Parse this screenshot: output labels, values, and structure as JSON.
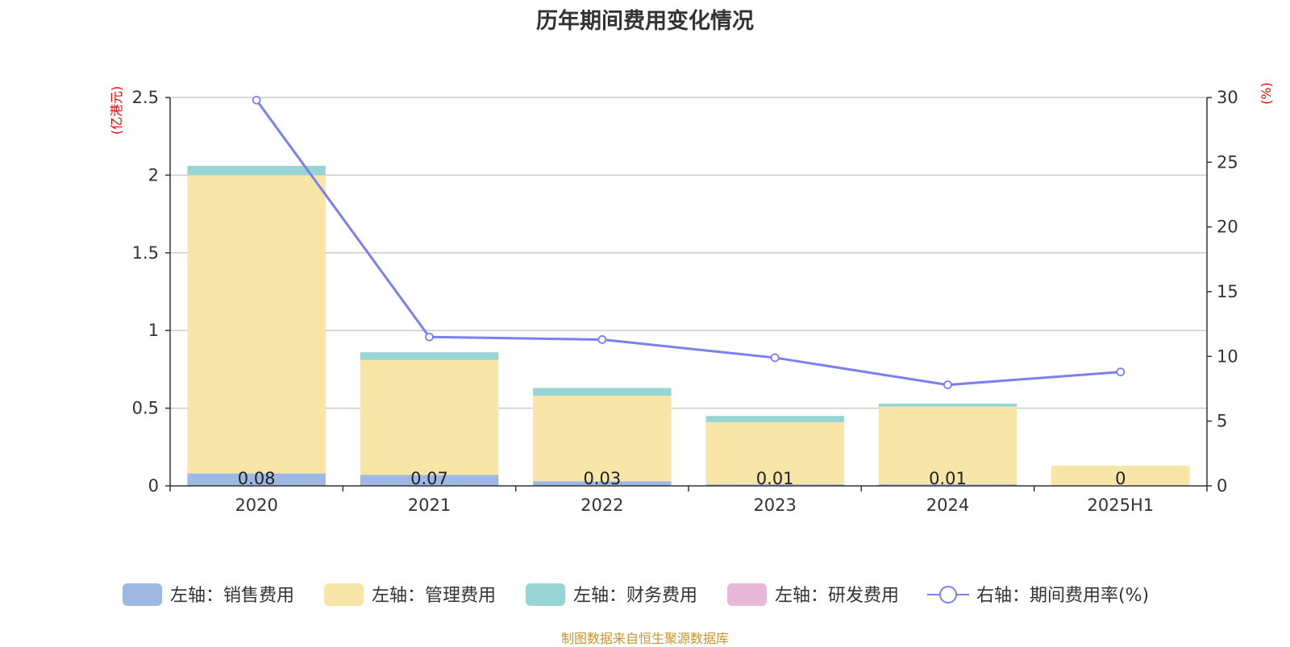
{
  "title": "历年期间费用变化情况",
  "source_note": "制图数据来自恒生聚源数据库",
  "chart_data": {
    "type": "bar",
    "stacked": true,
    "categories": [
      "2020",
      "2021",
      "2022",
      "2023",
      "2024",
      "2025H1"
    ],
    "left_axis": {
      "unit": "(亿港元)",
      "ylim": [
        0,
        2.5
      ],
      "ticks": [
        "0",
        "0.5",
        "1",
        "1.5",
        "2",
        "2.5"
      ]
    },
    "right_axis": {
      "unit": "(%)",
      "ylim": [
        0,
        30
      ],
      "ticks": [
        "0",
        "5",
        "10",
        "15",
        "20",
        "25",
        "30"
      ]
    },
    "grid": true,
    "legend_position": "bottom",
    "series": [
      {
        "name": "左轴：销售费用",
        "type": "bar",
        "axis": "left",
        "color": "#9db8e3",
        "values": [
          0.08,
          0.07,
          0.03,
          0.01,
          0.01,
          0
        ],
        "labels": [
          "0.08",
          "0.07",
          "0.03",
          "0.01",
          "0.01",
          "0"
        ]
      },
      {
        "name": "左轴：管理费用",
        "type": "bar",
        "axis": "left",
        "color": "#f7e6a8",
        "values": [
          1.92,
          0.74,
          0.55,
          0.4,
          0.5,
          0.13
        ]
      },
      {
        "name": "左轴：财务费用",
        "type": "bar",
        "axis": "left",
        "color": "#98d4d4",
        "values": [
          0.06,
          0.05,
          0.05,
          0.04,
          0.02,
          0
        ]
      },
      {
        "name": "左轴：研发费用",
        "type": "bar",
        "axis": "left",
        "color": "#e8b8d8",
        "values": [
          0,
          0,
          0,
          0,
          0,
          0
        ]
      },
      {
        "name": "右轴：期间费用率(%)",
        "type": "line",
        "axis": "right",
        "color": "#7b7ff0",
        "values": [
          29.8,
          11.5,
          11.3,
          9.9,
          7.8,
          8.8
        ]
      }
    ]
  }
}
